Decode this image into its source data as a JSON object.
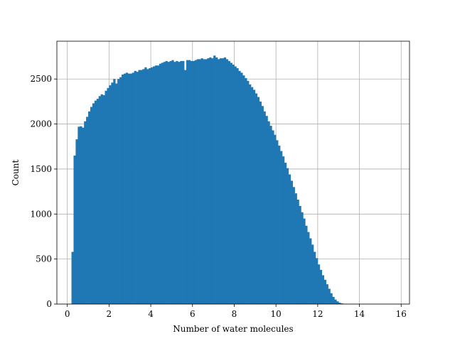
{
  "chart_data": {
    "type": "bar",
    "subtype": "histogram",
    "title": "",
    "xlabel": "Number of water molecules",
    "ylabel": "Count",
    "xlim": [
      -0.5,
      16.4
    ],
    "ylim": [
      0,
      2920
    ],
    "xticks": [
      0,
      2,
      4,
      6,
      8,
      10,
      12,
      14,
      16
    ],
    "yticks": [
      0,
      500,
      1000,
      1500,
      2000,
      2500
    ],
    "grid": true,
    "bar_color": "#1f77b4",
    "bin_width": 0.1,
    "bin_start": 0.2,
    "values": [
      580,
      1650,
      1830,
      1970,
      1975,
      1960,
      2030,
      2080,
      2140,
      2190,
      2230,
      2260,
      2280,
      2310,
      2330,
      2320,
      2370,
      2400,
      2430,
      2460,
      2500,
      2450,
      2500,
      2520,
      2550,
      2560,
      2570,
      2560,
      2560,
      2570,
      2590,
      2580,
      2600,
      2600,
      2610,
      2630,
      2610,
      2620,
      2630,
      2640,
      2650,
      2650,
      2670,
      2680,
      2690,
      2700,
      2690,
      2700,
      2710,
      2690,
      2700,
      2690,
      2700,
      2700,
      2600,
      2710,
      2710,
      2700,
      2700,
      2710,
      2720,
      2720,
      2730,
      2720,
      2720,
      2730,
      2740,
      2730,
      2760,
      2740,
      2720,
      2730,
      2730,
      2740,
      2720,
      2700,
      2680,
      2660,
      2640,
      2620,
      2590,
      2570,
      2540,
      2510,
      2480,
      2440,
      2410,
      2380,
      2340,
      2300,
      2250,
      2200,
      2140,
      2090,
      2030,
      1980,
      1930,
      1880,
      1820,
      1760,
      1700,
      1640,
      1570,
      1510,
      1440,
      1370,
      1300,
      1230,
      1160,
      1090,
      1020,
      950,
      870,
      800,
      730,
      660,
      580,
      510,
      440,
      380,
      320,
      270,
      220,
      170,
      120,
      80,
      50,
      30,
      15,
      8,
      4,
      2,
      1,
      0
    ]
  }
}
